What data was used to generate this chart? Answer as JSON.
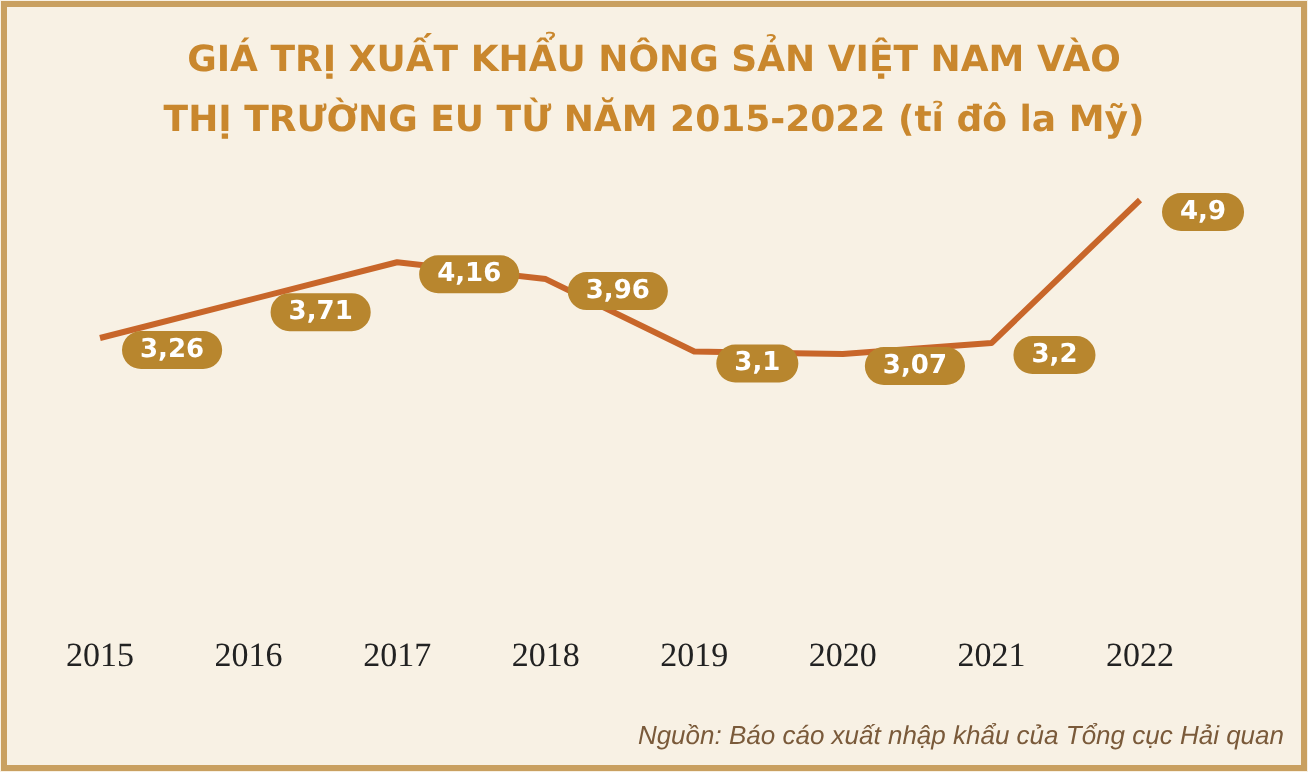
{
  "chart_data": {
    "type": "line",
    "title": "GIÁ TRỊ XUẤT KHẨU NÔNG SẢN VIỆT NAM VÀO\nTHỊ TRƯỜNG EU TỪ NĂM 2015-2022 (tỉ đô la Mỹ)",
    "categories": [
      "2015",
      "2016",
      "2017",
      "2018",
      "2019",
      "2020",
      "2021",
      "2022"
    ],
    "series": [
      {
        "color": "#c8662a",
        "values": [
          3.26,
          3.71,
          4.16,
          3.96,
          3.1,
          3.07,
          3.2,
          4.9
        ],
        "value_labels": [
          "3,26",
          "3,71",
          "4,16",
          "3,96",
          "3,1",
          "3,07",
          "3,2",
          "4,9"
        ]
      }
    ],
    "marker": "none",
    "grid": false,
    "annotations": [
      "Nguồn: Báo cáo xuất nhập khẩu của Tổng cục Hải quan"
    ]
  }
}
